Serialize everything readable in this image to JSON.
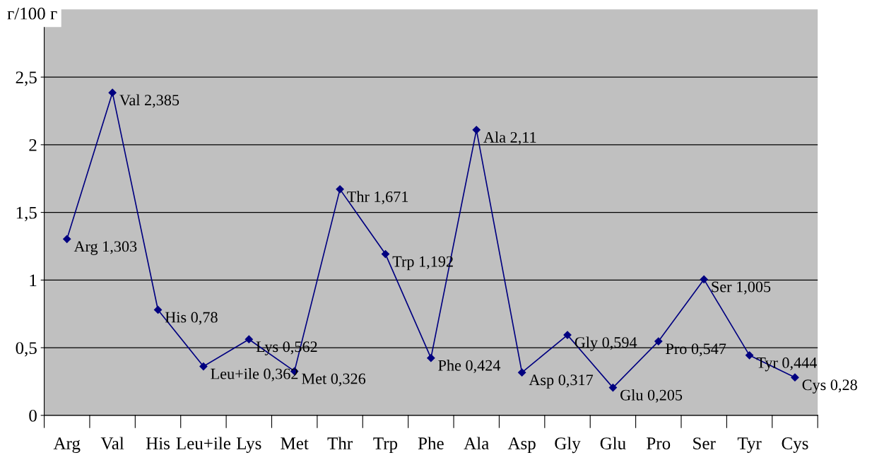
{
  "chart_data": {
    "type": "line",
    "ylabel": "г/100 г",
    "categories": [
      "Arg",
      "Val",
      "His",
      "Leu+ile",
      "Lys",
      "Met",
      "Thr",
      "Trp",
      "Phe",
      "Ala",
      "Asp",
      "Gly",
      "Glu",
      "Pro",
      "Ser",
      "Tyr",
      "Cys"
    ],
    "series": [
      {
        "color": "#000080",
        "values": [
          1.303,
          2.385,
          0.78,
          0.362,
          0.562,
          0.326,
          1.671,
          1.192,
          0.424,
          2.11,
          0.317,
          0.594,
          0.205,
          0.547,
          1.005,
          0.444,
          0.28
        ],
        "value_labels": [
          "Arg 1,303",
          "Val 2,385",
          "His 0,78",
          "Leu+ile 0,362",
          "Lys 0,562",
          "Met 0,326",
          "Thr 1,671",
          "Trp 1,192",
          "Phe 0,424",
          "Ala 2,11",
          "Asp 0,317",
          "Gly 0,594",
          "Glu 0,205",
          "Pro 0,547",
          "Ser 1,005",
          "Tyr 0,444",
          "Cys 0,28"
        ]
      }
    ],
    "ylim": [
      0,
      3
    ],
    "yticks": [
      0,
      {
        "value": 0.5,
        "label": "0,5"
      },
      1,
      {
        "value": 1.5,
        "label": "1,5"
      },
      2,
      {
        "value": 2.5,
        "label": "2,5"
      }
    ],
    "grid": "y",
    "marker": "diamond",
    "line_style": "solid",
    "legend": false
  }
}
